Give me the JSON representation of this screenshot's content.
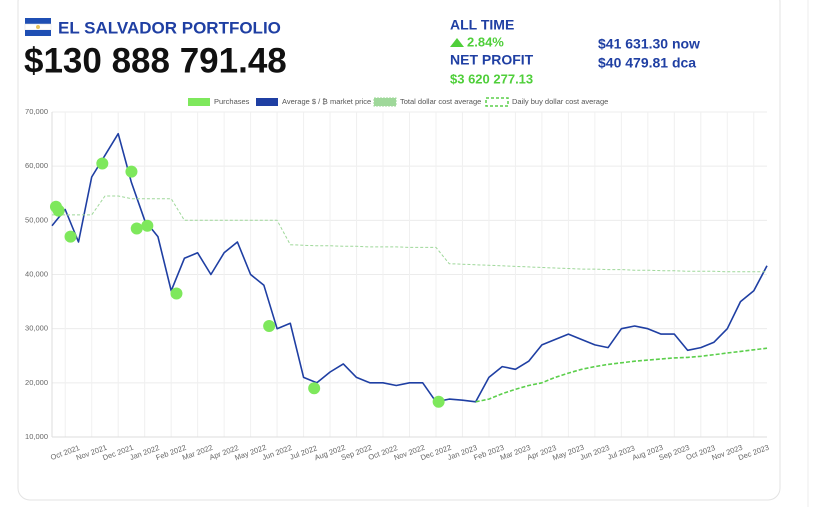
{
  "header": {
    "title": "EL SALVADOR PORTFOLIO",
    "value": "$130 888 791.48",
    "all_time_label": "ALL TIME",
    "all_time_change": "2.84%",
    "net_profit_label": "NET PROFIT",
    "net_profit": "$3 620 277.13",
    "price_now": "$41 631.30 now",
    "price_dca": "$40 479.81 dca"
  },
  "chart_data": {
    "type": "line",
    "grid": true,
    "xlim": [
      0.5,
      27.5
    ],
    "xticks": [
      {
        "value": 1,
        "label": "Oct 2021"
      },
      {
        "value": 2,
        "label": "Nov 2021"
      },
      {
        "value": 3,
        "label": "Dec 2021"
      },
      {
        "value": 4,
        "label": "Jan 2022"
      },
      {
        "value": 5,
        "label": "Feb 2022"
      },
      {
        "value": 6,
        "label": "Mar 2022"
      },
      {
        "value": 7,
        "label": "Apr 2022"
      },
      {
        "value": 8,
        "label": "May 2022"
      },
      {
        "value": 9,
        "label": "Jun 2022"
      },
      {
        "value": 10,
        "label": "Jul 2022"
      },
      {
        "value": 11,
        "label": "Aug 2022"
      },
      {
        "value": 12,
        "label": "Sep 2022"
      },
      {
        "value": 13,
        "label": "Oct 2022"
      },
      {
        "value": 14,
        "label": "Nov 2022"
      },
      {
        "value": 15,
        "label": "Dec 2022"
      },
      {
        "value": 16,
        "label": "Jan 2023"
      },
      {
        "value": 17,
        "label": "Feb 2023"
      },
      {
        "value": 18,
        "label": "Mar 2023"
      },
      {
        "value": 19,
        "label": "Apr 2023"
      },
      {
        "value": 20,
        "label": "May 2023"
      },
      {
        "value": 21,
        "label": "Jun 2023"
      },
      {
        "value": 22,
        "label": "Jul 2023"
      },
      {
        "value": 23,
        "label": "Aug 2023"
      },
      {
        "value": 24,
        "label": "Sep 2023"
      },
      {
        "value": 25,
        "label": "Oct 2023"
      },
      {
        "value": 26,
        "label": "Nov 2023"
      },
      {
        "value": 27,
        "label": "Dec 2023"
      }
    ],
    "ylim": [
      10000,
      70000
    ],
    "yticks": [
      {
        "value": 10000,
        "label": "10,000"
      },
      {
        "value": 20000,
        "label": "20,000"
      },
      {
        "value": 30000,
        "label": "30,000"
      },
      {
        "value": 40000,
        "label": "40,000"
      },
      {
        "value": 50000,
        "label": "50,000"
      },
      {
        "value": 60000,
        "label": "60,000"
      },
      {
        "value": 70000,
        "label": "70,000"
      }
    ],
    "x": [
      0.5,
      1.0,
      1.5,
      2.0,
      2.5,
      3.0,
      3.5,
      4.0,
      4.5,
      5.0,
      5.5,
      6.0,
      6.5,
      7.0,
      7.5,
      8.0,
      8.5,
      9.0,
      9.5,
      10.0,
      10.5,
      11.0,
      11.5,
      12.0,
      12.5,
      13.0,
      13.5,
      14.0,
      14.5,
      15.0,
      15.5,
      16.0,
      16.5,
      17.0,
      17.5,
      18.0,
      18.5,
      19.0,
      19.5,
      20.0,
      20.5,
      21.0,
      21.5,
      22.0,
      22.5,
      23.0,
      23.5,
      24.0,
      24.5,
      25.0,
      25.5,
      26.0,
      26.5,
      27.0,
      27.5
    ],
    "series": [
      {
        "name": "Purchases",
        "type": "scatter",
        "color": "#7ee85c",
        "x": [
          0.65,
          0.75,
          1.2,
          2.4,
          3.5,
          3.7,
          4.1,
          5.2,
          8.7,
          10.4,
          15.1
        ],
        "values": [
          52500,
          51800,
          47000,
          60500,
          59000,
          48500,
          49000,
          36500,
          30500,
          19000,
          16500
        ]
      },
      {
        "name": "Average $ / ₿ market price",
        "type": "line",
        "color": "#1f3fa3",
        "style": "solid",
        "values": [
          49000,
          52000,
          46000,
          58000,
          62000,
          66000,
          57000,
          50000,
          47000,
          37000,
          43000,
          44000,
          40000,
          44000,
          46000,
          40000,
          38000,
          30000,
          31000,
          21000,
          20000,
          22000,
          23500,
          21000,
          20000,
          20000,
          19500,
          20000,
          20000,
          16500,
          17000,
          16800,
          16500,
          21000,
          23000,
          22500,
          24000,
          27000,
          28000,
          29000,
          28000,
          27000,
          26500,
          30000,
          30500,
          30000,
          29000,
          29000,
          26000,
          26500,
          27500,
          30000,
          35000,
          37000,
          41600
        ]
      },
      {
        "name": "Total dollar cost average",
        "type": "line",
        "color": "#9fd89a",
        "style": "dashed",
        "values": [
          51000,
          51000,
          51000,
          51000,
          54500,
          54500,
          54000,
          54000,
          54000,
          54000,
          50000,
          50000,
          50000,
          50000,
          50000,
          50000,
          50000,
          50000,
          45500,
          45400,
          45300,
          45300,
          45200,
          45200,
          45100,
          45100,
          45100,
          45000,
          45000,
          45000,
          42000,
          41900,
          41800,
          41700,
          41600,
          41500,
          41400,
          41300,
          41200,
          41100,
          41000,
          41000,
          40900,
          40900,
          40800,
          40800,
          40700,
          40700,
          40600,
          40600,
          40600,
          40500,
          40500,
          40500,
          40500
        ]
      },
      {
        "name": "Daily buy dollar cost average",
        "type": "line",
        "color": "#5ccf4c",
        "style": "dashed",
        "values": [
          null,
          null,
          null,
          null,
          null,
          null,
          null,
          null,
          null,
          null,
          null,
          null,
          null,
          null,
          null,
          null,
          null,
          null,
          null,
          null,
          null,
          null,
          null,
          null,
          null,
          null,
          null,
          null,
          null,
          null,
          null,
          null,
          16500,
          17000,
          18000,
          18800,
          19500,
          20000,
          21000,
          21800,
          22500,
          23000,
          23400,
          23700,
          24000,
          24200,
          24400,
          24600,
          24700,
          24900,
          25200,
          25500,
          25800,
          26100,
          26400
        ]
      }
    ]
  }
}
